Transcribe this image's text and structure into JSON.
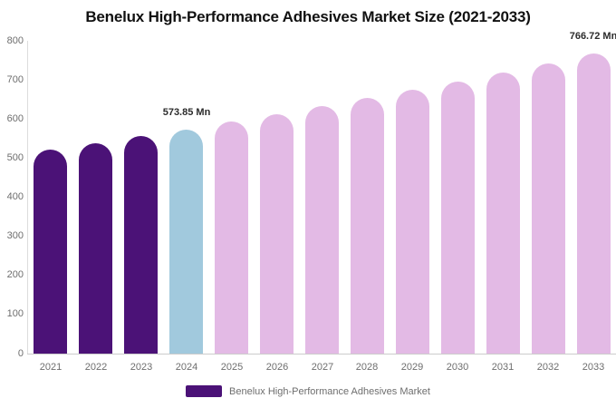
{
  "title": "Benelux High-Performance Adhesives Market Size (2021-2033)",
  "legend": {
    "label": "Benelux High-Performance Adhesives Market",
    "swatch_color": "#4B1277"
  },
  "colors": {
    "historical_bar": "#4B1277",
    "current_year_bar": "#A1C9DD",
    "forecast_bar": "#E3BAE5",
    "axis_line": "#dddddd",
    "tick_text": "#6e6e6e",
    "title_text": "#111111",
    "data_label_text": "#2b2b2b",
    "background": "#ffffff"
  },
  "chart_data": {
    "type": "bar",
    "title": "Benelux High-Performance Adhesives Market Size (2021-2033)",
    "xlabel": "",
    "ylabel": "",
    "ylim": [
      0,
      800
    ],
    "yticks": [
      0,
      100,
      200,
      300,
      400,
      500,
      600,
      700,
      800
    ],
    "grid": false,
    "legend_position": "bottom",
    "unit": "Mn",
    "categories": [
      "2021",
      "2022",
      "2023",
      "2024",
      "2025",
      "2026",
      "2027",
      "2028",
      "2029",
      "2030",
      "2031",
      "2032",
      "2033"
    ],
    "values": [
      521,
      538,
      556,
      573.85,
      593,
      612,
      632,
      653,
      674,
      696,
      719,
      742,
      766.72
    ],
    "bar_colors": [
      "#4B1277",
      "#4B1277",
      "#4B1277",
      "#A1C9DD",
      "#E3BAE5",
      "#E3BAE5",
      "#E3BAE5",
      "#E3BAE5",
      "#E3BAE5",
      "#E3BAE5",
      "#E3BAE5",
      "#E3BAE5",
      "#E3BAE5"
    ],
    "data_labels": [
      {
        "index": 3,
        "text": "573.85 Mn"
      },
      {
        "index": 12,
        "text": "766.72 Mn"
      }
    ]
  }
}
